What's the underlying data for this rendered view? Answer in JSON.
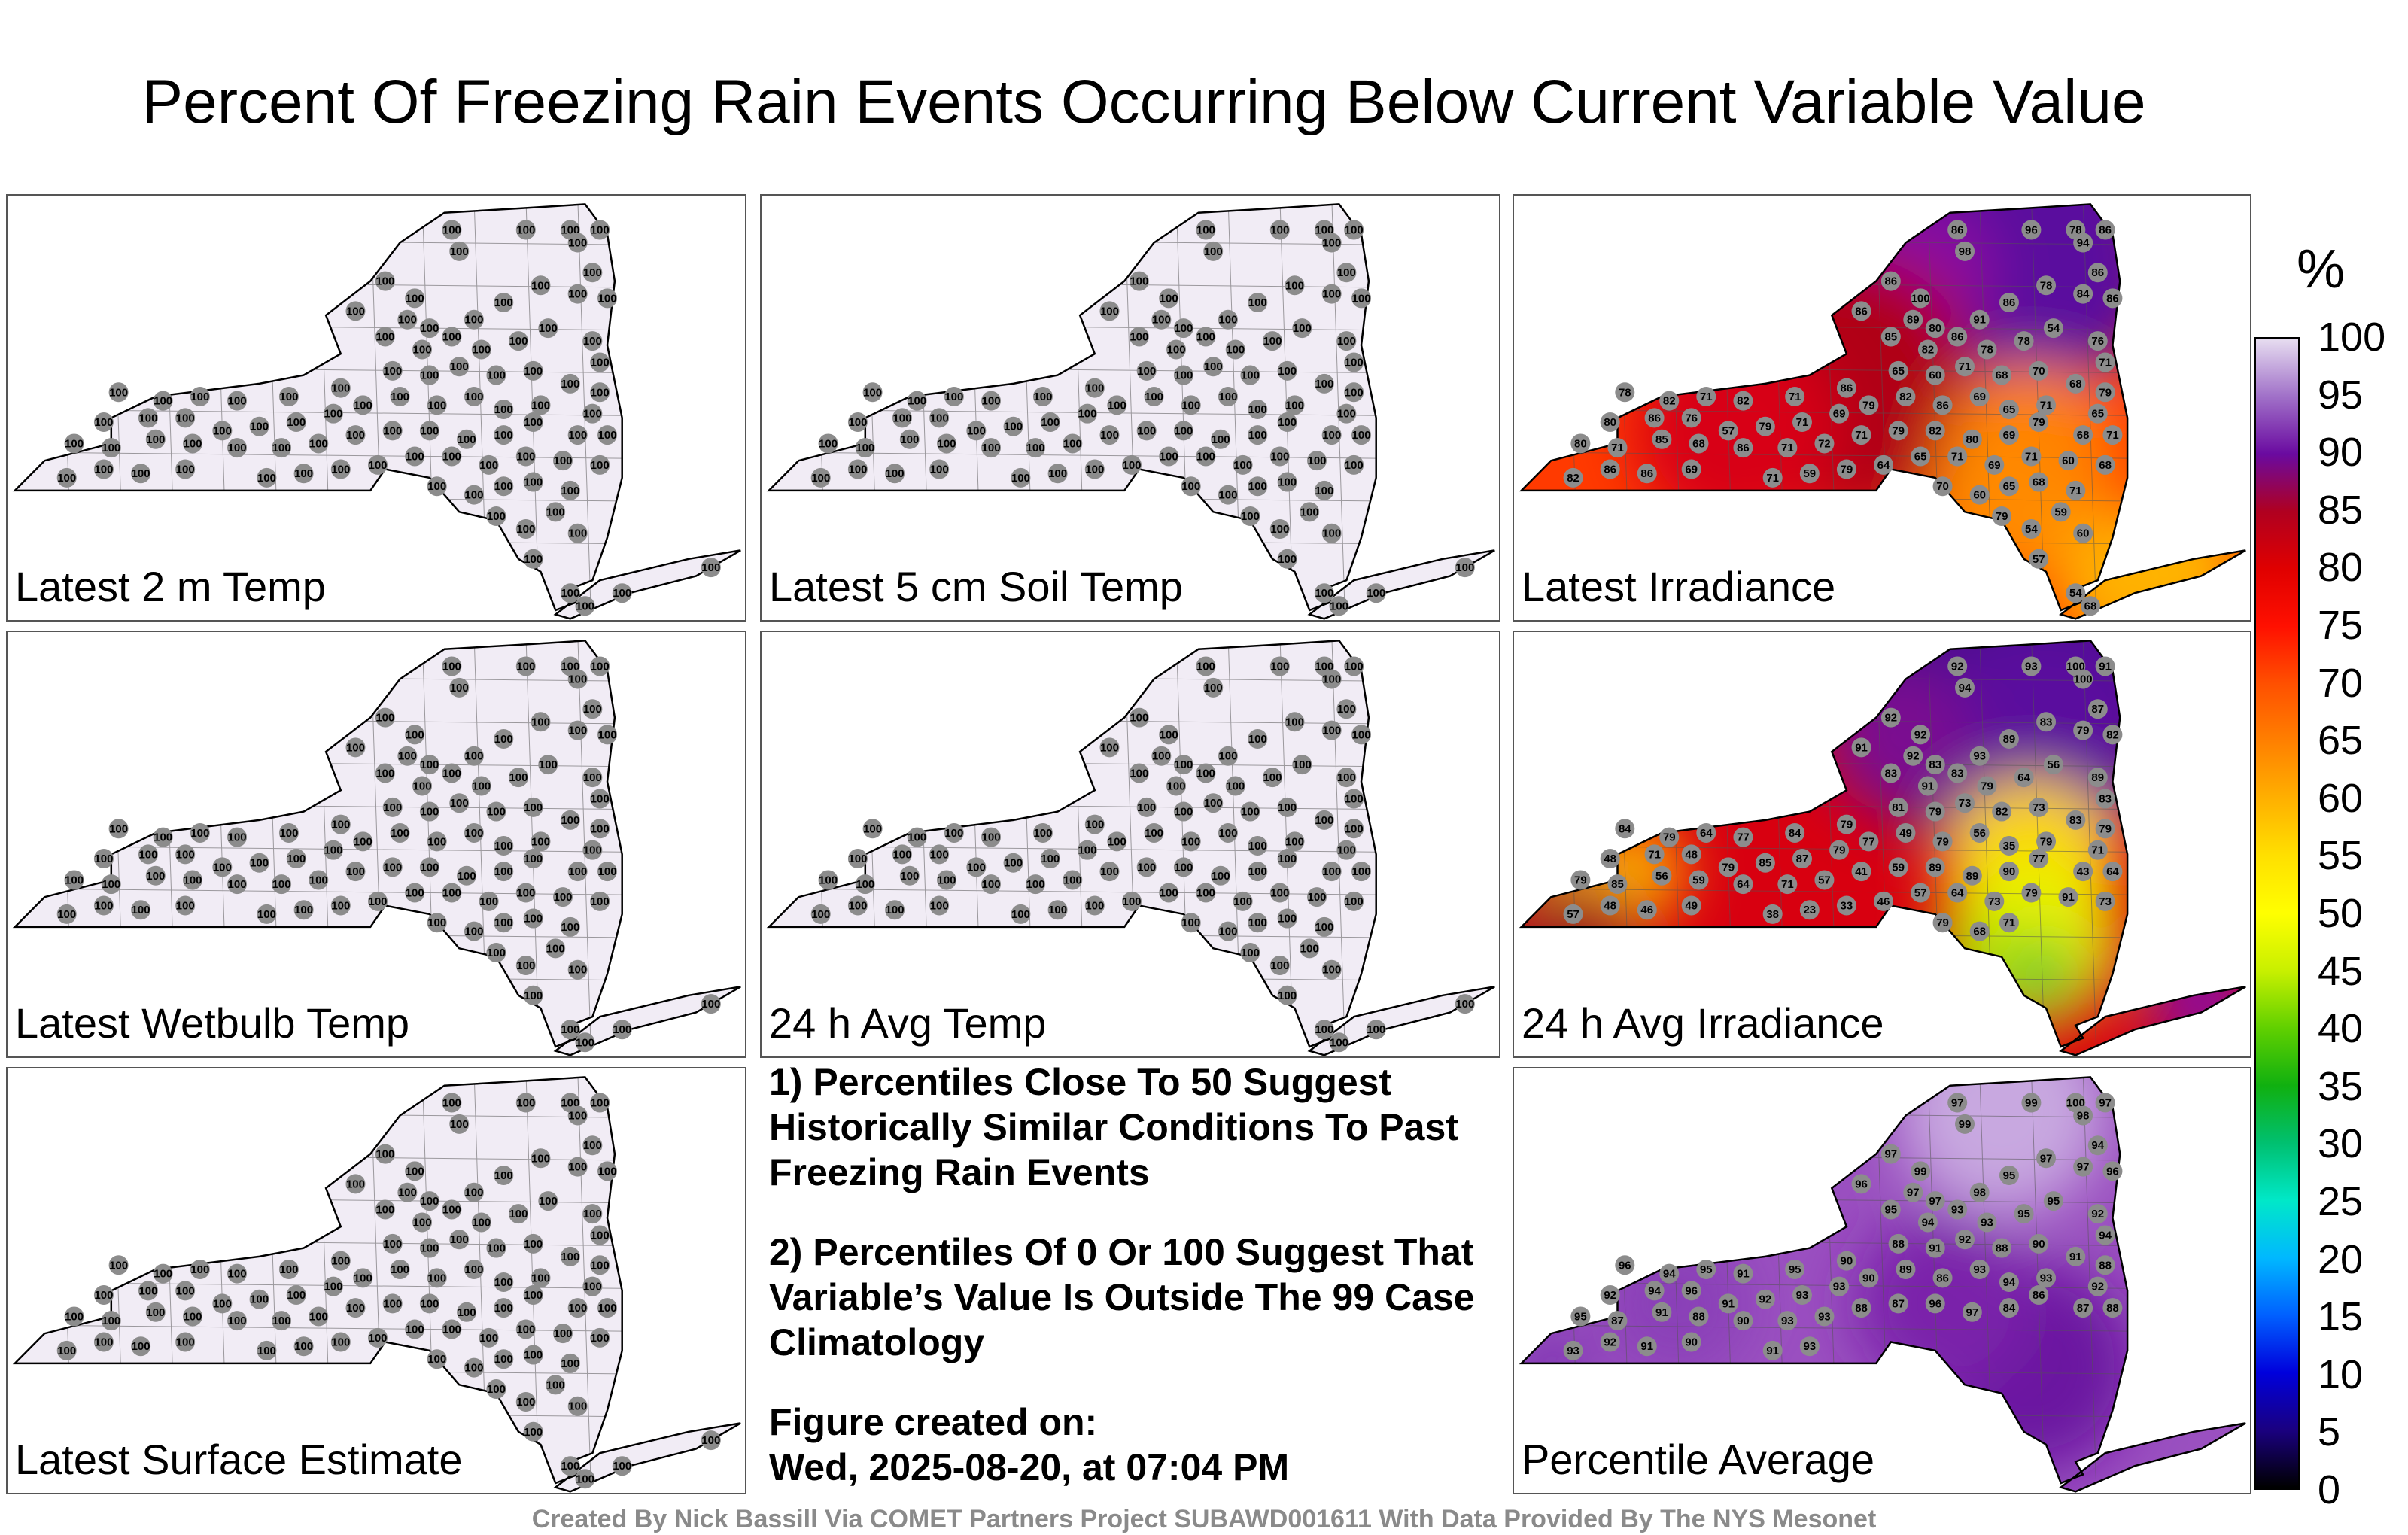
{
  "title": "Percent Of Freezing Rain Events Occurring Below Current Variable Value",
  "panels": [
    {
      "label": "Latest 2 m Temp",
      "scheme": "uniform"
    },
    {
      "label": "Latest 5 cm Soil Temp",
      "scheme": "uniform"
    },
    {
      "label": "Latest Irradiance",
      "scheme": "irradiance"
    },
    {
      "label": "Latest Wetbulb Temp",
      "scheme": "uniform"
    },
    {
      "label": "24 h Avg Temp",
      "scheme": "uniform"
    },
    {
      "label": "24 h Avg Irradiance",
      "scheme": "avgirr"
    },
    {
      "label": "Latest Surface Estimate",
      "scheme": "uniform"
    },
    {
      "label": "Percentile Average",
      "scheme": "average"
    }
  ],
  "notes": {
    "note1": "1) Percentiles Close To 50 Suggest Historically Similar Conditions To Past Freezing Rain Events",
    "note2": "2) Percentiles Of 0 Or 100 Suggest That Variable’s Value Is Outside The 99 Case Climatology",
    "created_label": "Figure created on:",
    "created_date": "Wed, 2025-08-20, at 07:04 PM"
  },
  "colorbar": {
    "unit": "%",
    "ticks": [
      "0",
      "5",
      "10",
      "15",
      "20",
      "25",
      "30",
      "35",
      "40",
      "45",
      "50",
      "55",
      "60",
      "65",
      "70",
      "75",
      "80",
      "85",
      "90",
      "95",
      "100"
    ],
    "colors": [
      "#000000",
      "#1a0080",
      "#0000dc",
      "#0060ff",
      "#00b8ff",
      "#00e8c8",
      "#00c070",
      "#10b010",
      "#60d000",
      "#c8f000",
      "#ffff00",
      "#ffe000",
      "#ffb000",
      "#ff8000",
      "#ff5000",
      "#ff1000",
      "#e00000",
      "#b00020",
      "#6a0aa0",
      "#a070c8",
      "#e6dcf0"
    ]
  },
  "footer": "Created By Nick Bassill Via COMET Partners Project SUBAWD001611 With Data Provided By The NYS Mesonet",
  "station_values": {
    "uniform": "100",
    "irradiance": [
      "86",
      "98",
      "96",
      "78",
      "94",
      "86",
      "86",
      "100",
      "86",
      "89",
      "80",
      "91",
      "86",
      "78",
      "84",
      "86",
      "86",
      "85",
      "82",
      "86",
      "78",
      "78",
      "54",
      "76",
      "71",
      "78",
      "82",
      "71",
      "82",
      "71",
      "86",
      "65",
      "60",
      "71",
      "68",
      "70",
      "68",
      "79",
      "80",
      "86",
      "76",
      "57",
      "79",
      "71",
      "69",
      "79",
      "82",
      "86",
      "69",
      "65",
      "71",
      "65",
      "80",
      "71",
      "85",
      "68",
      "86",
      "71",
      "72",
      "71",
      "79",
      "82",
      "80",
      "69",
      "79",
      "68",
      "71",
      "82",
      "86",
      "86",
      "69",
      "71",
      "59",
      "79",
      "64",
      "65",
      "71",
      "69",
      "71",
      "60",
      "68",
      "70",
      "60",
      "65",
      "68",
      "71",
      "79",
      "54",
      "59",
      "60",
      "57",
      "54",
      "68"
    ],
    "avgirr": [
      "92",
      "94",
      "93",
      "100",
      "100",
      "91",
      "92",
      "92",
      "91",
      "92",
      "83",
      "93",
      "89",
      "83",
      "79",
      "87",
      "82",
      "83",
      "91",
      "83",
      "79",
      "64",
      "56",
      "89",
      "83",
      "84",
      "79",
      "64",
      "77",
      "84",
      "79",
      "81",
      "79",
      "73",
      "82",
      "73",
      "83",
      "79",
      "48",
      "71",
      "48",
      "79",
      "85",
      "87",
      "79",
      "77",
      "49",
      "79",
      "56",
      "35",
      "79",
      "71",
      "79",
      "85",
      "56",
      "59",
      "64",
      "71",
      "57",
      "41",
      "59",
      "89",
      "89",
      "90",
      "77",
      "43",
      "64",
      "57",
      "48",
      "46",
      "49",
      "38",
      "23",
      "33",
      "46",
      "57",
      "64",
      "73",
      "79",
      "91",
      "73",
      "79",
      "68",
      "71"
    ],
    "average": [
      "97",
      "99",
      "99",
      "100",
      "98",
      "97",
      "97",
      "99",
      "96",
      "97",
      "97",
      "98",
      "95",
      "97",
      "97",
      "94",
      "96",
      "95",
      "94",
      "93",
      "93",
      "95",
      "95",
      "92",
      "94",
      "96",
      "94",
      "95",
      "91",
      "95",
      "90",
      "88",
      "91",
      "92",
      "88",
      "90",
      "91",
      "88",
      "92",
      "94",
      "96",
      "91",
      "92",
      "93",
      "93",
      "90",
      "89",
      "86",
      "93",
      "94",
      "93",
      "92",
      "95",
      "87",
      "91",
      "88",
      "90",
      "93",
      "93",
      "88",
      "87",
      "96",
      "97",
      "84",
      "86",
      "87",
      "88",
      "93",
      "92",
      "91",
      "90",
      "91",
      "93"
    ]
  }
}
